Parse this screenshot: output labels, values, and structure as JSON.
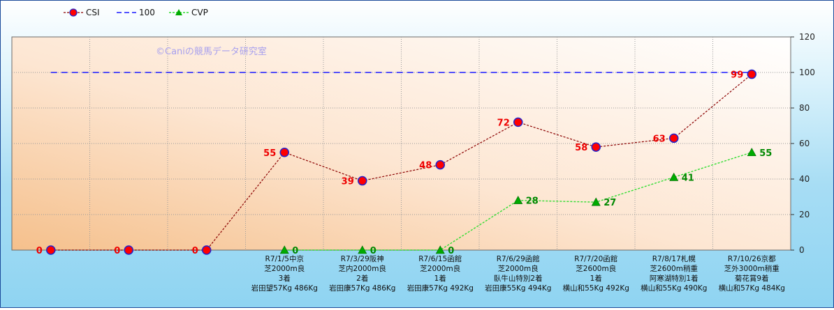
{
  "chart_data": {
    "type": "line",
    "categories": [
      "",
      "",
      "",
      "R7/1/5中京|芝2000m良|3着|岩田望57Kg 486Kg",
      "R7/3/29阪神|芝内2000m良|2着|岩田康57Kg 486Kg",
      "R7/6/15函館|芝2000m良|1着|岩田康57Kg 492Kg",
      "R7/6/29函館|芝2000m良|臥牛山特別2着|岩田康55Kg 494Kg",
      "R7/7/20函館|芝2600m良|1着|横山和55Kg 492Kg",
      "R7/8/17札幌|芝2600m稍重|阿寒湖特別1着|横山和55Kg 490Kg",
      "R7/10/26京都|芝外3000m稍重|菊花賞9着|横山和57Kg 484Kg"
    ],
    "series": [
      {
        "name": "CSI",
        "values": [
          0,
          0,
          0,
          55,
          39,
          48,
          72,
          58,
          63,
          99
        ],
        "color": "#8b0000",
        "marker_color": "#ff0000",
        "marker_edge": "#2222cc"
      },
      {
        "name": "100",
        "values": [
          100,
          100,
          100,
          100,
          100,
          100,
          100,
          100,
          100,
          100
        ],
        "color": "#1a1aff"
      },
      {
        "name": "CVP",
        "values": [
          null,
          null,
          null,
          0,
          0,
          0,
          28,
          27,
          41,
          55
        ],
        "color": "#33dd33",
        "marker_color": "#00aa00"
      }
    ],
    "y_ticks": [
      0,
      20,
      40,
      60,
      80,
      100,
      120
    ],
    "ylim": [
      0,
      120
    ],
    "watermark": "©Caniの競馬データ研究室",
    "legend_position": "top-left",
    "grid": true
  }
}
